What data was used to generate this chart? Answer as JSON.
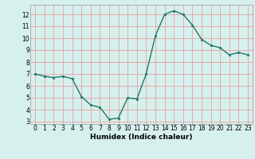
{
  "x": [
    0,
    1,
    2,
    3,
    4,
    5,
    6,
    7,
    8,
    9,
    10,
    11,
    12,
    13,
    14,
    15,
    16,
    17,
    18,
    19,
    20,
    21,
    22,
    23
  ],
  "y": [
    7.0,
    6.8,
    6.7,
    6.8,
    6.6,
    5.1,
    4.4,
    4.2,
    3.2,
    3.3,
    5.0,
    4.9,
    7.0,
    10.2,
    12.0,
    12.3,
    12.0,
    11.1,
    9.9,
    9.4,
    9.2,
    8.6,
    8.8,
    8.6
  ],
  "xlabel": "Humidex (Indice chaleur)",
  "ylim_min": 2.8,
  "ylim_max": 12.8,
  "xlim_min": -0.5,
  "xlim_max": 23.5,
  "yticks": [
    3,
    4,
    5,
    6,
    7,
    8,
    9,
    10,
    11,
    12
  ],
  "xticks": [
    0,
    1,
    2,
    3,
    4,
    5,
    6,
    7,
    8,
    9,
    10,
    11,
    12,
    13,
    14,
    15,
    16,
    17,
    18,
    19,
    20,
    21,
    22,
    23
  ],
  "line_color": "#1e7a65",
  "marker_color": "#1e7a65",
  "bg_color": "#d6f0ee",
  "grid_color": "#e8a0a0",
  "tick_fontsize": 5.5,
  "xlabel_fontsize": 6.5
}
